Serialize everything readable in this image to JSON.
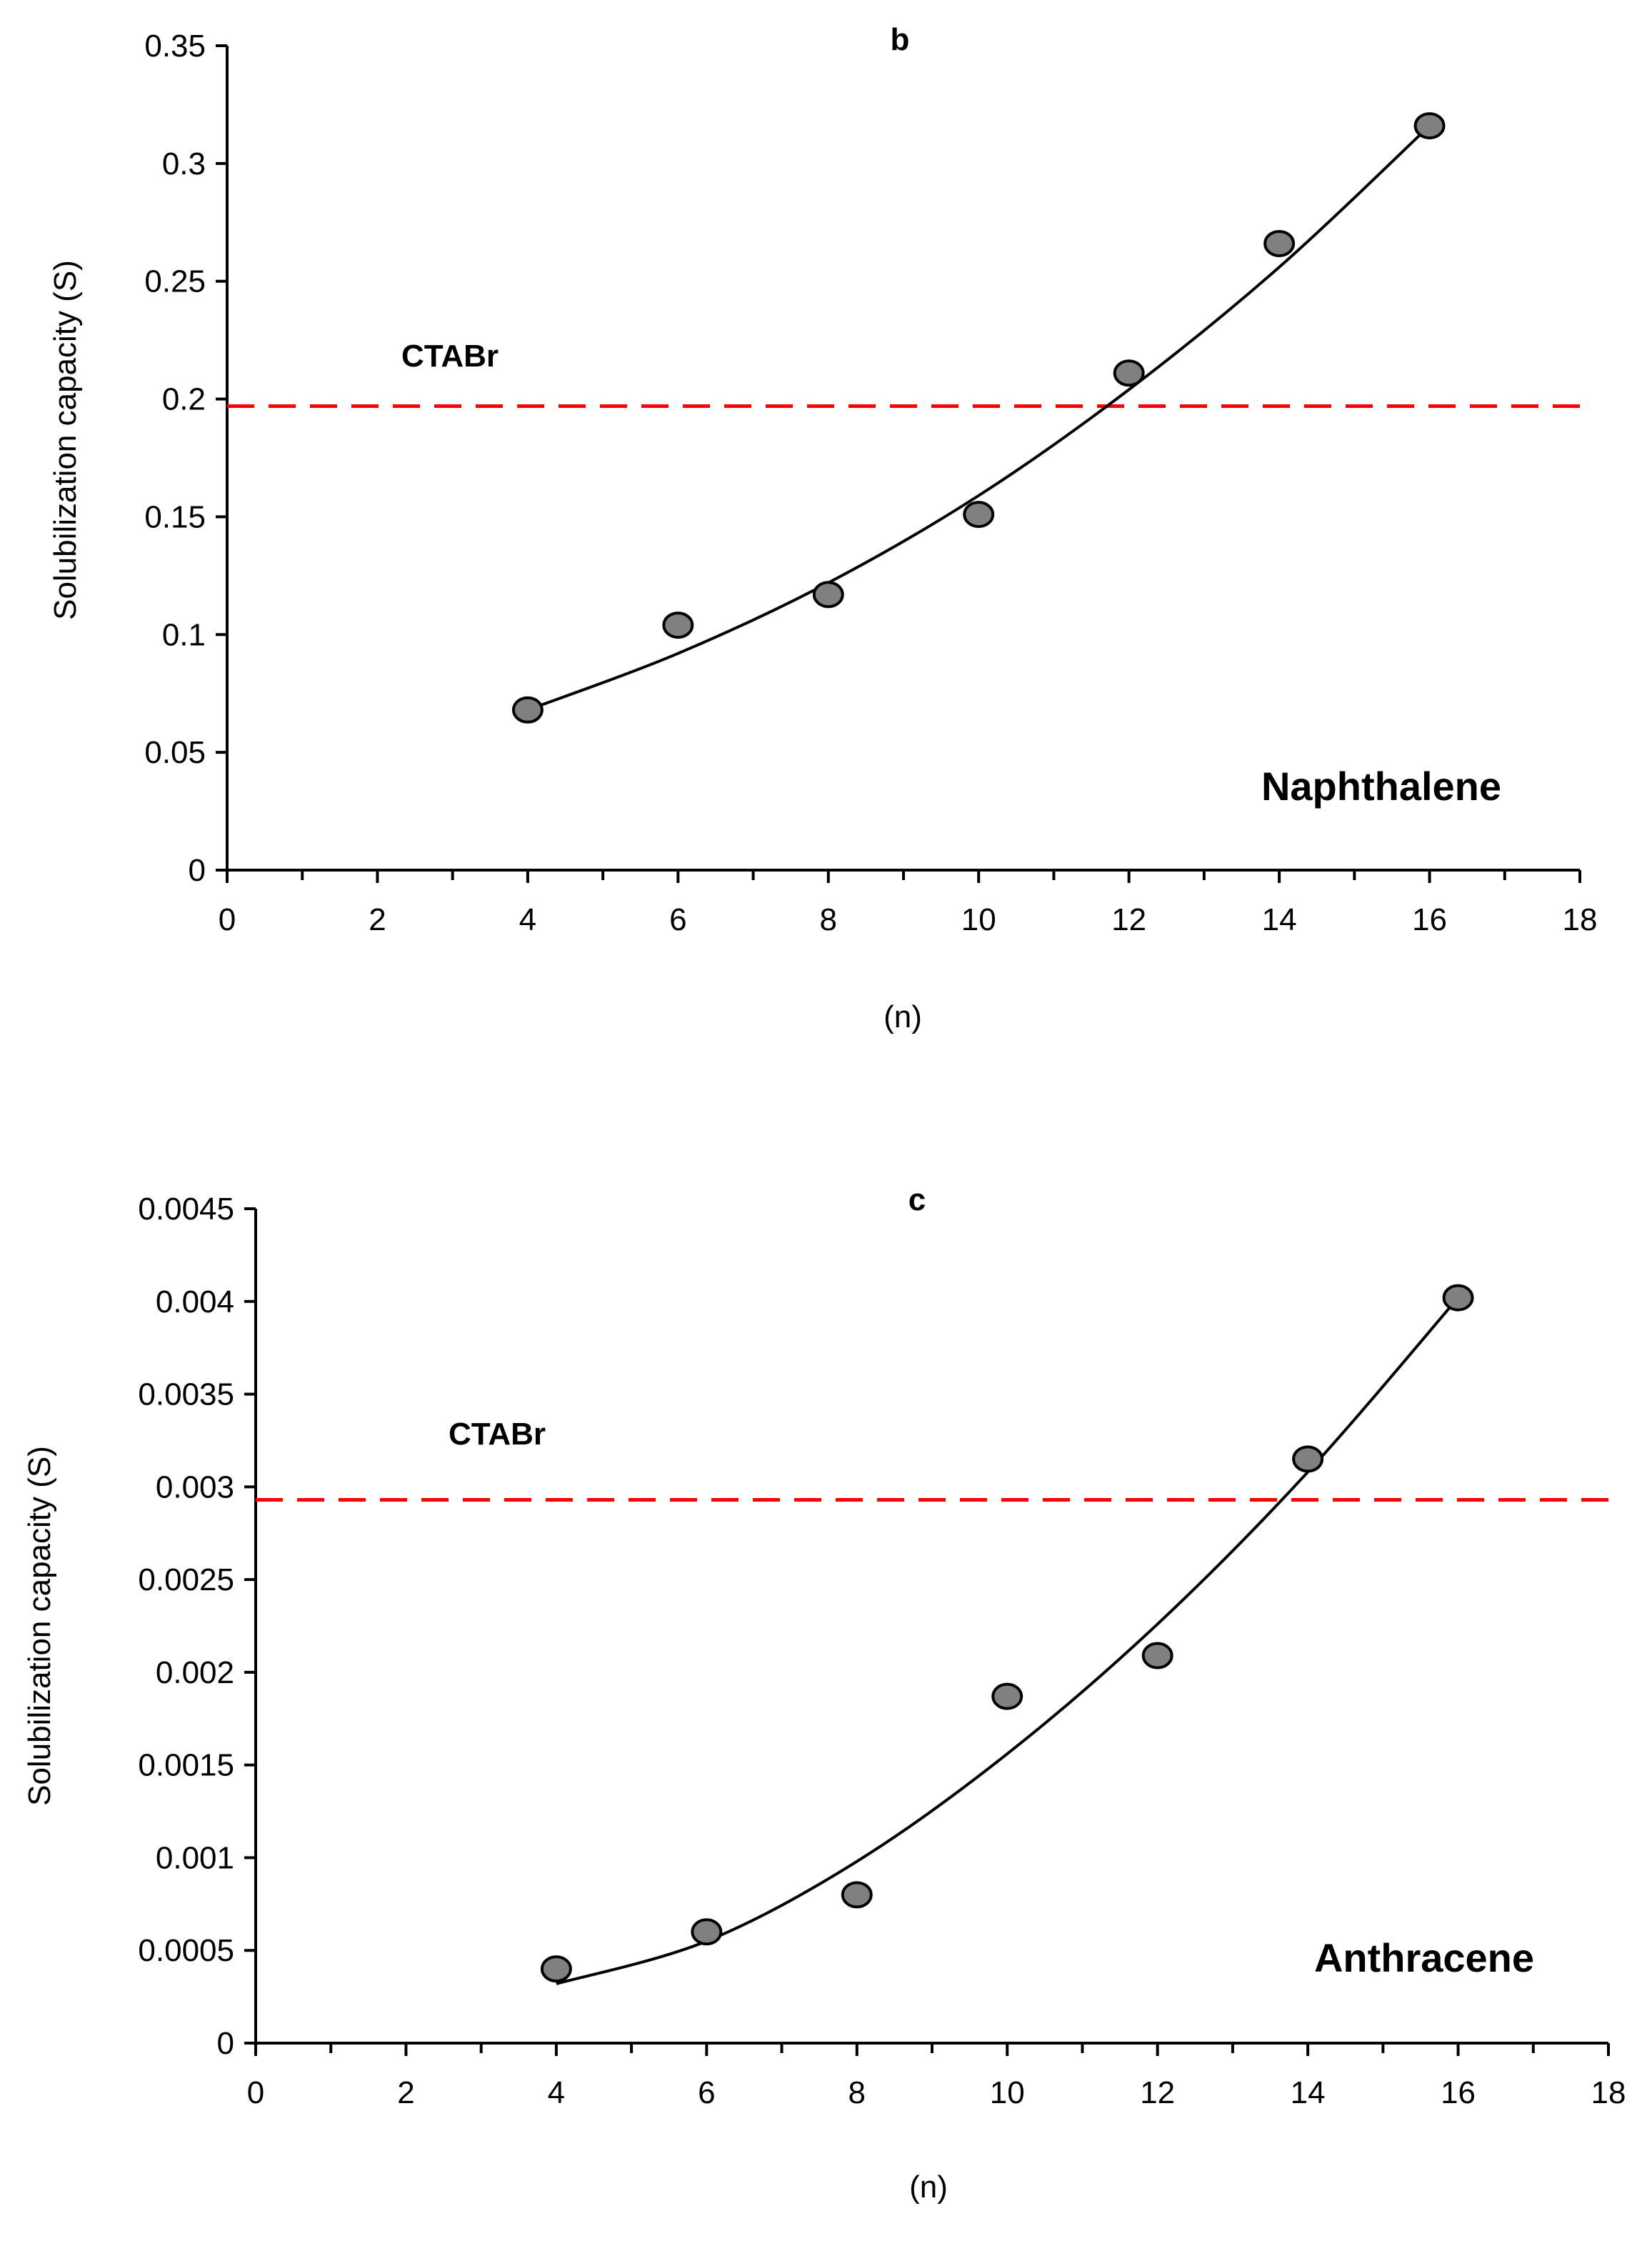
{
  "colors": {
    "reference": "#ff0000",
    "point_fill": "#808080",
    "point_stroke": "#000000",
    "axis": "#000000",
    "fit": "#000000"
  },
  "chart_data": [
    {
      "type": "scatter",
      "panel": "b",
      "annotation": "Naphthalene",
      "xlabel": "(n)",
      "ylabel": "Solubilization capacity (S)",
      "xlim": [
        0,
        18
      ],
      "ylim": [
        0,
        0.35
      ],
      "xticks": [
        "0",
        "2",
        "4",
        "6",
        "8",
        "10",
        "12",
        "14",
        "16",
        "18"
      ],
      "yticks": [
        "0",
        "0.05",
        "0.1",
        "0.15",
        "0.2",
        "0.25",
        "0.3",
        "0.35"
      ],
      "x": [
        4,
        6,
        8,
        10,
        12,
        14,
        16
      ],
      "y": [
        0.068,
        0.104,
        0.117,
        0.151,
        0.211,
        0.266,
        0.316
      ],
      "trendline": {
        "type": "polynomial",
        "x": [
          4,
          6,
          8,
          10,
          12,
          14,
          16
        ],
        "y": [
          0.068,
          0.092,
          0.122,
          0.159,
          0.204,
          0.256,
          0.316
        ]
      },
      "reference_line": {
        "label": "CTABr",
        "value": 0.197,
        "style": "dashed"
      },
      "grid": false
    },
    {
      "type": "scatter",
      "panel": "c",
      "annotation": "Anthracene",
      "xlabel": "(n)",
      "ylabel": "Solubilization capacity (S)",
      "xlim": [
        0,
        18
      ],
      "ylim": [
        0,
        0.0045
      ],
      "xticks": [
        "0",
        "2",
        "4",
        "6",
        "8",
        "10",
        "12",
        "14",
        "16",
        "18"
      ],
      "yticks": [
        "0",
        "0.0005",
        "0.001",
        "0.0015",
        "0.002",
        "0.0025",
        "0.003",
        "0.0035",
        "0.004",
        "0.0045"
      ],
      "x": [
        4,
        6,
        8,
        10,
        12,
        14,
        16
      ],
      "y": [
        0.0004,
        0.0006,
        0.0008,
        0.00187,
        0.00209,
        0.00315,
        0.00402
      ],
      "trendline": {
        "type": "polynomial",
        "x": [
          4,
          6,
          8,
          10,
          12,
          14,
          16
        ],
        "y": [
          0.00032,
          0.00055,
          0.00098,
          0.00156,
          0.00226,
          0.00308,
          0.00402
        ]
      },
      "reference_line": {
        "label": "CTABr",
        "value": 0.00293,
        "style": "dashed"
      },
      "grid": false
    }
  ]
}
